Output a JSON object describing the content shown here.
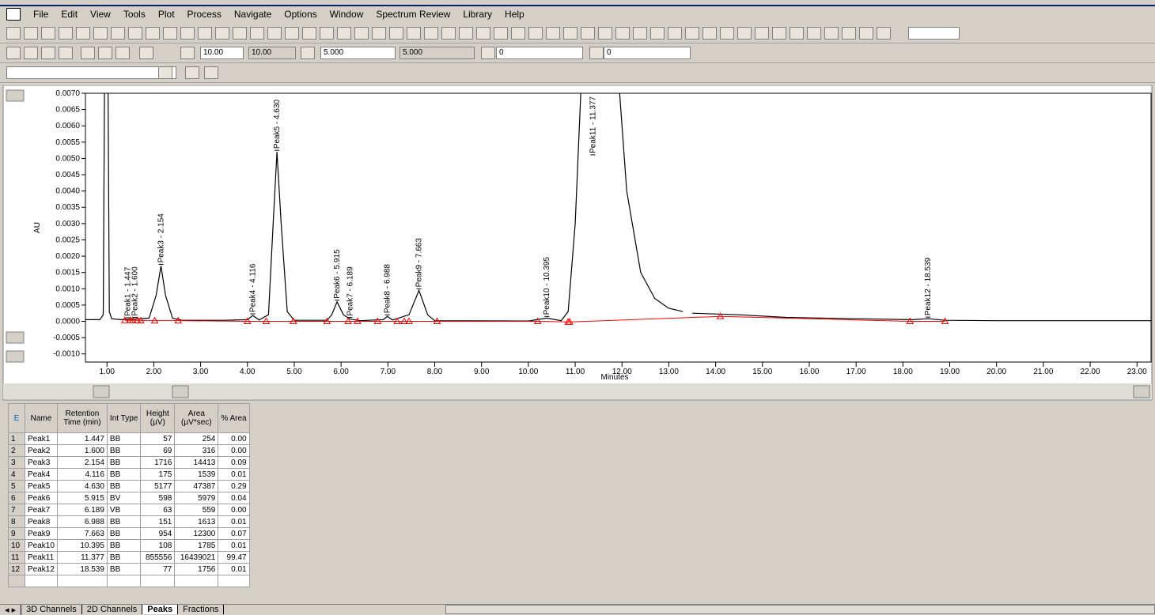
{
  "menu": [
    "File",
    "Edit",
    "View",
    "Tools",
    "Plot",
    "Process",
    "Navigate",
    "Options",
    "Window",
    "Spectrum Review",
    "Library",
    "Help"
  ],
  "toolbar": {
    "inputs": [
      "10.00",
      "10.00",
      "5.000",
      "5.000",
      "0",
      "0"
    ]
  },
  "chart": {
    "ylabel": "AU",
    "xlabel": "Minutes",
    "xlim": [
      0.54,
      23.3
    ],
    "ylim": [
      -0.00125,
      0.007
    ],
    "yticks": [
      {
        "value": 0.007,
        "label": "0.0070"
      },
      {
        "value": 0.0065,
        "label": "0.0065"
      },
      {
        "value": 0.006,
        "label": "0.0060"
      },
      {
        "value": 0.0055,
        "label": "0.0055"
      },
      {
        "value": 0.005,
        "label": "0.0050"
      },
      {
        "value": 0.0045,
        "label": "0.0045"
      },
      {
        "value": 0.004,
        "label": "0.0040"
      },
      {
        "value": 0.0035,
        "label": "0.0035"
      },
      {
        "value": 0.003,
        "label": "0.0030"
      },
      {
        "value": 0.0025,
        "label": "0.0025"
      },
      {
        "value": 0.002,
        "label": "0.0020"
      },
      {
        "value": 0.0015,
        "label": "0.0015"
      },
      {
        "value": 0.001,
        "label": "0.0010"
      },
      {
        "value": 0.0005,
        "label": "0.0005"
      },
      {
        "value": 0,
        "label": "0.0000"
      },
      {
        "value": -0.0005,
        "label": "-0.0005"
      },
      {
        "value": -0.001,
        "label": "-0.0010"
      }
    ],
    "xticks": [
      {
        "value": 1,
        "label": "1.00"
      },
      {
        "value": 2,
        "label": "2.00"
      },
      {
        "value": 3,
        "label": "3.00"
      },
      {
        "value": 4,
        "label": "4.00"
      },
      {
        "value": 5,
        "label": "5.00"
      },
      {
        "value": 6,
        "label": "6.00"
      },
      {
        "value": 7,
        "label": "7.00"
      },
      {
        "value": 8,
        "label": "8.00"
      },
      {
        "value": 9,
        "label": "9.00"
      },
      {
        "value": 10,
        "label": "10.00"
      },
      {
        "value": 11,
        "label": "11.00"
      },
      {
        "value": 12,
        "label": "12.00"
      },
      {
        "value": 13,
        "label": "13.00"
      },
      {
        "value": 14,
        "label": "14.00"
      },
      {
        "value": 15,
        "label": "15.00"
      },
      {
        "value": 16,
        "label": "16.00"
      },
      {
        "value": 17,
        "label": "17.00"
      },
      {
        "value": 18,
        "label": "18.00"
      },
      {
        "value": 19,
        "label": "19.00"
      },
      {
        "value": 20,
        "label": "20.00"
      },
      {
        "value": 21,
        "label": "21.00"
      },
      {
        "value": 22,
        "label": "22.00"
      },
      {
        "value": 23,
        "label": "23.00"
      }
    ],
    "trace": {
      "color": "#000000",
      "x": [
        0.54,
        0.85,
        0.92,
        0.95,
        1.02,
        1.05,
        1.1,
        1.3,
        1.44,
        1.6,
        1.9,
        2.05,
        2.154,
        2.25,
        2.4,
        2.6,
        3.5,
        4.0,
        4.116,
        4.25,
        4.45,
        4.55,
        4.63,
        4.72,
        4.85,
        5.0,
        5.7,
        5.8,
        5.915,
        6.05,
        6.189,
        6.4,
        6.9,
        6.988,
        7.1,
        7.45,
        7.663,
        7.85,
        8.0,
        10.0,
        10.395,
        10.7,
        10.85,
        11.0,
        11.15,
        11.9,
        12.1,
        12.4,
        12.7,
        13.0,
        13.3,
        null,
        13.5,
        14.5,
        15.5,
        17.0,
        18.2,
        18.539,
        18.9,
        20.0,
        23.3
      ],
      "y": [
        5e-05,
        5e-05,
        0.0002,
        0.008,
        0.008,
        0.0003,
        8e-05,
        5e-05,
        6e-05,
        7e-05,
        0.0001,
        0.0008,
        0.0017,
        0.0008,
        0.0001,
        3e-05,
        3e-05,
        5e-05,
        0.00018,
        4e-05,
        0.0002,
        0.003,
        0.0052,
        0.003,
        0.0003,
        3e-05,
        3e-05,
        0.0002,
        0.0006,
        0.0002,
        7e-05,
        2e-05,
        5e-05,
        0.00015,
        4e-05,
        0.0002,
        0.00095,
        0.0002,
        2e-05,
        1e-05,
        0.0001,
        2e-05,
        0.0003,
        0.003,
        0.008,
        0.008,
        0.004,
        0.0015,
        0.0007,
        0.0004,
        0.0003,
        null,
        0.00025,
        0.0002,
        0.00012,
        8e-05,
        5e-05,
        8e-05,
        3e-05,
        2e-05,
        2e-05
      ]
    },
    "baseline": {
      "color": "#ff0000",
      "x": [
        1.38,
        1.5,
        1.55,
        1.65,
        1.72,
        2.02,
        2.52,
        4.0,
        4.4,
        4.98,
        5.7,
        6.15,
        6.35,
        6.78,
        7.2,
        7.35,
        7.45,
        8.05,
        10.2,
        10.85,
        10.88,
        14.1,
        18.15,
        18.9
      ],
      "y": [
        3e-05,
        3e-05,
        3e-05,
        3e-05,
        2e-05,
        2e-05,
        2e-05,
        0.0,
        0.0,
        0.0,
        0.0,
        0.0,
        0.0,
        0.0,
        0.0,
        0.0,
        0.0,
        0.0,
        0.0,
        -2e-05,
        -2e-05,
        0.00015,
        0.0,
        0.0
      ]
    },
    "peaks": [
      {
        "label": "Peak1 - 1.447",
        "x": 1.447
      },
      {
        "label": "Peak2 - 1.600",
        "x": 1.6
      },
      {
        "label": "Peak3 - 2.154",
        "x": 2.154
      },
      {
        "label": "Peak4 - 4.116",
        "x": 4.116
      },
      {
        "label": "Peak5 - 4.630",
        "x": 4.63
      },
      {
        "label": "Peak6 - 5.915",
        "x": 5.915
      },
      {
        "label": "Peak7 - 6.189",
        "x": 6.189
      },
      {
        "label": "Peak8 - 6.988",
        "x": 6.988
      },
      {
        "label": "Peak9 - 7.663",
        "x": 7.663
      },
      {
        "label": "Peak10 - 10.395",
        "x": 10.395
      },
      {
        "label": "Peak11 - 11.377",
        "x": 11.377
      },
      {
        "label": "Peak12 - 18.539",
        "x": 18.539
      }
    ]
  },
  "table": {
    "headers": [
      "Name",
      "Retention Time (min)",
      "Int Type",
      "Height (µV)",
      "Area (µV*sec)",
      "% Area"
    ],
    "rows": [
      [
        "1",
        "Peak1",
        "1.447",
        "BB",
        "57",
        "254",
        "0.00"
      ],
      [
        "2",
        "Peak2",
        "1.600",
        "BB",
        "69",
        "316",
        "0.00"
      ],
      [
        "3",
        "Peak3",
        "2.154",
        "BB",
        "1716",
        "14413",
        "0.09"
      ],
      [
        "4",
        "Peak4",
        "4.116",
        "BB",
        "175",
        "1539",
        "0.01"
      ],
      [
        "5",
        "Peak5",
        "4.630",
        "BB",
        "5177",
        "47387",
        "0.29"
      ],
      [
        "6",
        "Peak6",
        "5.915",
        "BV",
        "598",
        "5979",
        "0.04"
      ],
      [
        "7",
        "Peak7",
        "6.189",
        "VB",
        "63",
        "559",
        "0.00"
      ],
      [
        "8",
        "Peak8",
        "6.988",
        "BB",
        "151",
        "1613",
        "0.01"
      ],
      [
        "9",
        "Peak9",
        "7.663",
        "BB",
        "954",
        "12300",
        "0.07"
      ],
      [
        "10",
        "Peak10",
        "10.395",
        "BB",
        "108",
        "1785",
        "0.01"
      ],
      [
        "11",
        "Peak11",
        "11.377",
        "BB",
        "855556",
        "16439021",
        "99.47"
      ],
      [
        "12",
        "Peak12",
        "18.539",
        "BB",
        "77",
        "1756",
        "0.01"
      ]
    ]
  },
  "tabs": [
    "3D Channels",
    "2D Channels",
    "Peaks",
    "Fractions"
  ]
}
